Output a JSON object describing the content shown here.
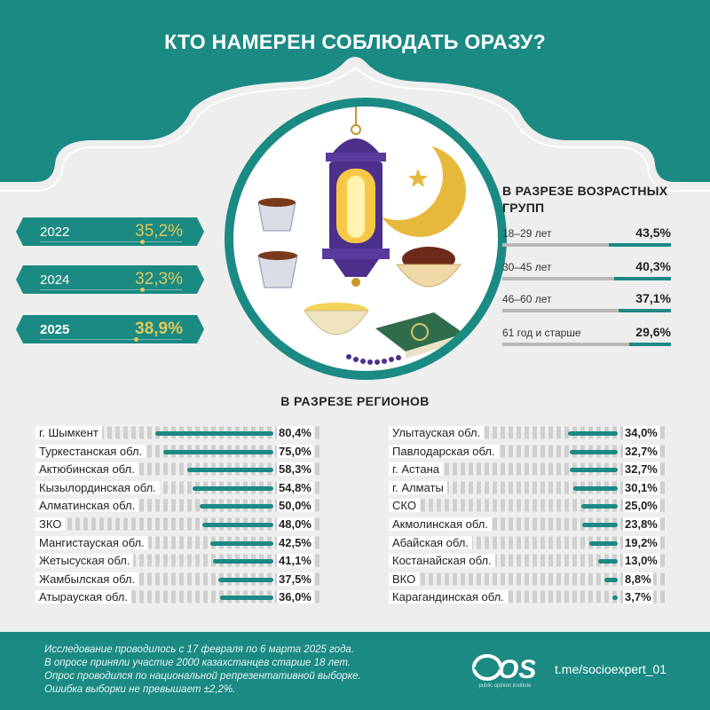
{
  "title": "КТО НАМЕРЕН СОБЛЮДАТЬ ОРАЗУ?",
  "colors": {
    "teal": "#1b8a83",
    "gold": "#e0c858",
    "bg": "#eeeeee"
  },
  "years": [
    {
      "year": "2022",
      "value": "35,2%",
      "bold": false
    },
    {
      "year": "2024",
      "value": "32,3%",
      "bold": false
    },
    {
      "year": "2025",
      "value": "38,9%",
      "bold": true
    }
  ],
  "age_title": "В РАЗРЕЗЕ ВОЗРАСТНЫХ ГРУПП",
  "age_groups": [
    {
      "label": "18–29 лет",
      "value": "43,5%",
      "num": 43.5
    },
    {
      "label": "30–45 лет",
      "value": "40,3%",
      "num": 40.3
    },
    {
      "label": "46–60 лет",
      "value": "37,1%",
      "num": 37.1
    },
    {
      "label": "61 год и старше",
      "value": "29,6%",
      "num": 29.6
    }
  ],
  "region_title": "В РАЗРЕЗЕ РЕГИОНОВ",
  "regions_left": [
    {
      "label": "г. Шымкент",
      "value": "80,4%",
      "num": 80.4
    },
    {
      "label": "Туркестанская обл.",
      "value": "75,0%",
      "num": 75.0
    },
    {
      "label": "Актюбинская обл.",
      "value": "58,3%",
      "num": 58.3
    },
    {
      "label": "Кызылординская обл.",
      "value": "54,8%",
      "num": 54.8
    },
    {
      "label": "Алматинская обл.",
      "value": "50,0%",
      "num": 50.0
    },
    {
      "label": "ЗКО",
      "value": "48,0%",
      "num": 48.0
    },
    {
      "label": "Мангистауская обл.",
      "value": "42,5%",
      "num": 42.5
    },
    {
      "label": "Жетысуская обл.",
      "value": "41,1%",
      "num": 41.1
    },
    {
      "label": "Жамбылская обл.",
      "value": "37,5%",
      "num": 37.5
    },
    {
      "label": "Атырауская обл.",
      "value": "36,0%",
      "num": 36.0
    }
  ],
  "regions_right": [
    {
      "label": "Улытауская обл.",
      "value": "34,0%",
      "num": 34.0
    },
    {
      "label": "Павлодарская обл.",
      "value": "32,7%",
      "num": 32.7
    },
    {
      "label": "г. Астана",
      "value": "32,7%",
      "num": 32.7
    },
    {
      "label": "г. Алматы",
      "value": "30,1%",
      "num": 30.1
    },
    {
      "label": "СКО",
      "value": "25,0%",
      "num": 25.0
    },
    {
      "label": "Акмолинская обл.",
      "value": "23,8%",
      "num": 23.8
    },
    {
      "label": "Абайская обл.",
      "value": "19,2%",
      "num": 19.2
    },
    {
      "label": "Костанайская обл.",
      "value": "13,0%",
      "num": 13.0
    },
    {
      "label": "ВКО",
      "value": "8,8%",
      "num": 8.8
    },
    {
      "label": "Карагандинская обл.",
      "value": "3,7%",
      "num": 3.7
    }
  ],
  "footer": {
    "lines": [
      "Исследование проводилось с 17 февраля по 6 марта 2025 года.",
      "В опросе приняли участие 2000 казахстанцев старше 18 лет.",
      "Опрос проводился по национальной репрезентативной выборке.",
      "Ошибка выборки не превышает ±2,2%."
    ],
    "logo_text": "OSI",
    "logo_sub": "public opinion institute",
    "telegram": "t.me/socioexpert_01"
  },
  "chart_data": [
    {
      "type": "table",
      "title": "КТО НАМЕРЕН СОБЛЮДАТЬ ОРАЗУ?",
      "categories": [
        "2022",
        "2024",
        "2025"
      ],
      "values": [
        35.2,
        32.3,
        38.9
      ]
    },
    {
      "type": "bar",
      "title": "В РАЗРЕЗЕ ВОЗРАСТНЫХ ГРУПП",
      "categories": [
        "18–29 лет",
        "30–45 лет",
        "46–60 лет",
        "61 год и старше"
      ],
      "values": [
        43.5,
        40.3,
        37.1,
        29.6
      ],
      "ylim": [
        0,
        100
      ]
    },
    {
      "type": "bar",
      "title": "В РАЗРЕЗЕ РЕГИОНОВ",
      "categories": [
        "г. Шымкент",
        "Туркестанская обл.",
        "Актюбинская обл.",
        "Кызылординская обл.",
        "Алматинская обл.",
        "ЗКО",
        "Мангистауская обл.",
        "Жетысуская обл.",
        "Жамбылская обл.",
        "Атырауская обл.",
        "Улытауская обл.",
        "Павлодарская обл.",
        "г. Астана",
        "г. Алматы",
        "СКО",
        "Акмолинская обл.",
        "Абайская обл.",
        "Костанайская обл.",
        "ВКО",
        "Карагандинская обл."
      ],
      "values": [
        80.4,
        75.0,
        58.3,
        54.8,
        50.0,
        48.0,
        42.5,
        41.1,
        37.5,
        36.0,
        34.0,
        32.7,
        32.7,
        30.1,
        25.0,
        23.8,
        19.2,
        13.0,
        8.8,
        3.7
      ],
      "ylim": [
        0,
        100
      ]
    }
  ]
}
